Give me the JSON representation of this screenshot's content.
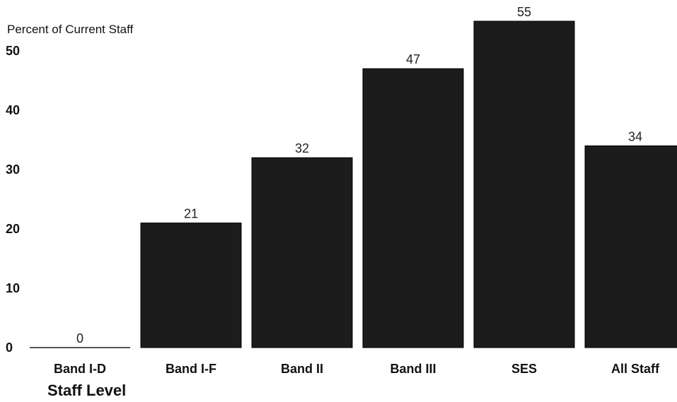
{
  "chart_data": {
    "type": "bar",
    "ylabel": "Percent of Current Staff",
    "xlabel": "Staff Level",
    "categories": [
      "Band I-D",
      "Band I-F",
      "Band II",
      "Band III",
      "SES",
      "All Staff"
    ],
    "values": [
      0,
      21,
      32,
      47,
      55,
      34
    ],
    "data_labels": [
      "0",
      "21",
      "32",
      "47",
      "55",
      "34"
    ],
    "yticks": [
      "0",
      "10",
      "20",
      "30",
      "40",
      "50"
    ],
    "ylim": [
      0,
      55
    ],
    "bar_color": "#1c1c1c",
    "grid": false,
    "legend": "none"
  }
}
